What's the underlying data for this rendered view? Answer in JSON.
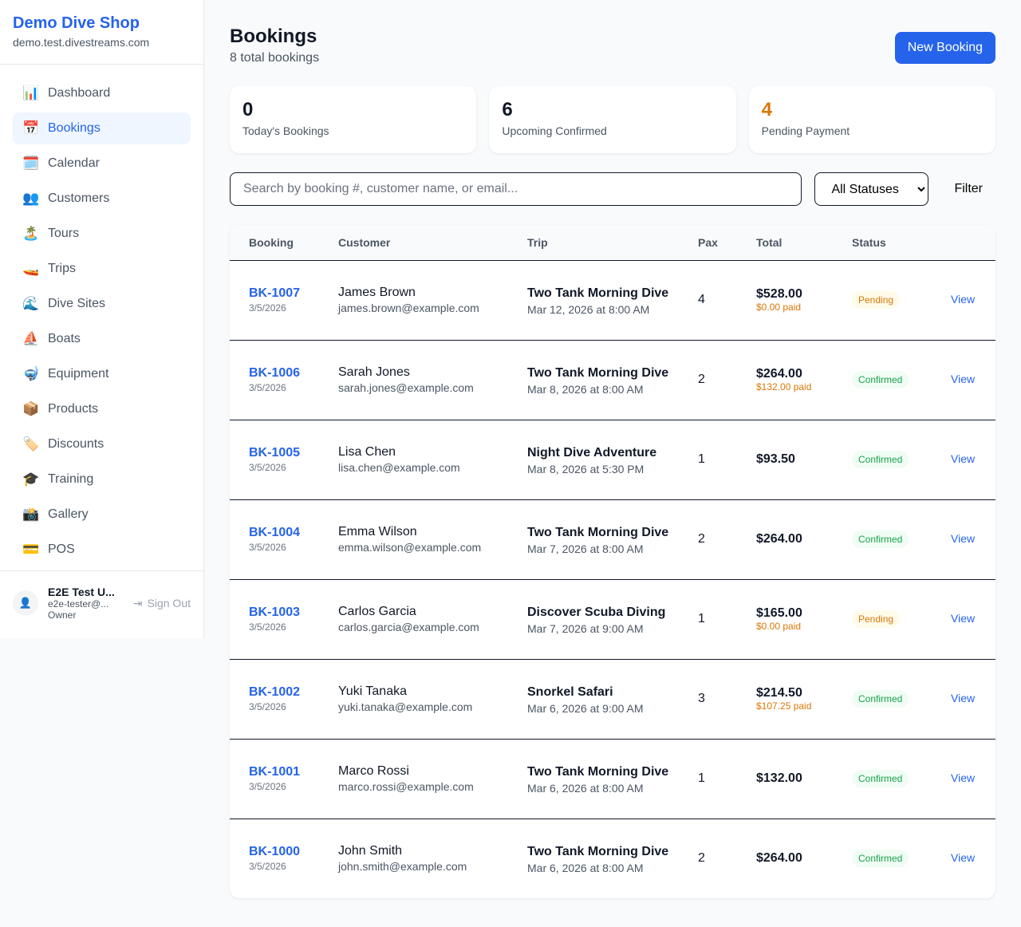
{
  "sidebar": {
    "shop_name": "Demo Dive Shop",
    "domain": "demo.test.divestreams.com",
    "items": [
      {
        "label": "Dashboard",
        "icon": "📊",
        "active": false
      },
      {
        "label": "Bookings",
        "icon": "📅",
        "active": true
      },
      {
        "label": "Calendar",
        "icon": "🗓️",
        "active": false
      },
      {
        "label": "Customers",
        "icon": "👥",
        "active": false
      },
      {
        "label": "Tours",
        "icon": "🏝️",
        "active": false
      },
      {
        "label": "Trips",
        "icon": "🚤",
        "active": false
      },
      {
        "label": "Dive Sites",
        "icon": "🌊",
        "active": false
      },
      {
        "label": "Boats",
        "icon": "⛵",
        "active": false
      },
      {
        "label": "Equipment",
        "icon": "🤿",
        "active": false
      },
      {
        "label": "Products",
        "icon": "📦",
        "active": false
      },
      {
        "label": "Discounts",
        "icon": "🏷️",
        "active": false
      },
      {
        "label": "Training",
        "icon": "🎓",
        "active": false
      },
      {
        "label": "Gallery",
        "icon": "📸",
        "active": false
      },
      {
        "label": "POS",
        "icon": "💳",
        "active": false
      }
    ],
    "user": {
      "name": "E2E Test U...",
      "email": "e2e-tester@...",
      "role": "Owner",
      "sign_out": "Sign Out"
    }
  },
  "header": {
    "title": "Bookings",
    "subtitle": "8 total bookings",
    "new_button": "New Booking"
  },
  "stats": [
    {
      "value": "0",
      "label": "Today's Bookings",
      "color": "#111827"
    },
    {
      "value": "6",
      "label": "Upcoming Confirmed",
      "color": "#111827"
    },
    {
      "value": "4",
      "label": "Pending Payment",
      "color": "#d97706"
    }
  ],
  "filters": {
    "search_placeholder": "Search by booking #, customer name, or email...",
    "status_selected": "All Statuses",
    "filter_button": "Filter"
  },
  "table": {
    "columns": [
      "Booking",
      "Customer",
      "Trip",
      "Pax",
      "Total",
      "Status",
      ""
    ],
    "rows": [
      {
        "id": "BK-1007",
        "date": "3/5/2026",
        "name": "James Brown",
        "email": "james.brown@example.com",
        "trip": "Two Tank Morning Dive",
        "trip_date": "Mar 12, 2026 at 8:00 AM",
        "pax": "4",
        "total": "$528.00",
        "paid": "$0.00 paid",
        "status": "Pending",
        "action": "View"
      },
      {
        "id": "BK-1006",
        "date": "3/5/2026",
        "name": "Sarah Jones",
        "email": "sarah.jones@example.com",
        "trip": "Two Tank Morning Dive",
        "trip_date": "Mar 8, 2026 at 8:00 AM",
        "pax": "2",
        "total": "$264.00",
        "paid": "$132.00 paid",
        "status": "Confirmed",
        "action": "View"
      },
      {
        "id": "BK-1005",
        "date": "3/5/2026",
        "name": "Lisa Chen",
        "email": "lisa.chen@example.com",
        "trip": "Night Dive Adventure",
        "trip_date": "Mar 8, 2026 at 5:30 PM",
        "pax": "1",
        "total": "$93.50",
        "paid": "",
        "status": "Confirmed",
        "action": "View"
      },
      {
        "id": "BK-1004",
        "date": "3/5/2026",
        "name": "Emma Wilson",
        "email": "emma.wilson@example.com",
        "trip": "Two Tank Morning Dive",
        "trip_date": "Mar 7, 2026 at 8:00 AM",
        "pax": "2",
        "total": "$264.00",
        "paid": "",
        "status": "Confirmed",
        "action": "View"
      },
      {
        "id": "BK-1003",
        "date": "3/5/2026",
        "name": "Carlos Garcia",
        "email": "carlos.garcia@example.com",
        "trip": "Discover Scuba Diving",
        "trip_date": "Mar 7, 2026 at 9:00 AM",
        "pax": "1",
        "total": "$165.00",
        "paid": "$0.00 paid",
        "status": "Pending",
        "action": "View"
      },
      {
        "id": "BK-1002",
        "date": "3/5/2026",
        "name": "Yuki Tanaka",
        "email": "yuki.tanaka@example.com",
        "trip": "Snorkel Safari",
        "trip_date": "Mar 6, 2026 at 9:00 AM",
        "pax": "3",
        "total": "$214.50",
        "paid": "$107.25 paid",
        "status": "Confirmed",
        "action": "View"
      },
      {
        "id": "BK-1001",
        "date": "3/5/2026",
        "name": "Marco Rossi",
        "email": "marco.rossi@example.com",
        "trip": "Two Tank Morning Dive",
        "trip_date": "Mar 6, 2026 at 8:00 AM",
        "pax": "1",
        "total": "$132.00",
        "paid": "",
        "status": "Confirmed",
        "action": "View"
      },
      {
        "id": "BK-1000",
        "date": "3/5/2026",
        "name": "John Smith",
        "email": "john.smith@example.com",
        "trip": "Two Tank Morning Dive",
        "trip_date": "Mar 6, 2026 at 8:00 AM",
        "pax": "2",
        "total": "$264.00",
        "paid": "",
        "status": "Confirmed",
        "action": "View"
      }
    ]
  },
  "status_colors": {
    "Pending": {
      "bg": "#fffbeb",
      "fg": "#d97706"
    },
    "Confirmed": {
      "bg": "#f0fdf4",
      "fg": "#16a34a"
    }
  }
}
